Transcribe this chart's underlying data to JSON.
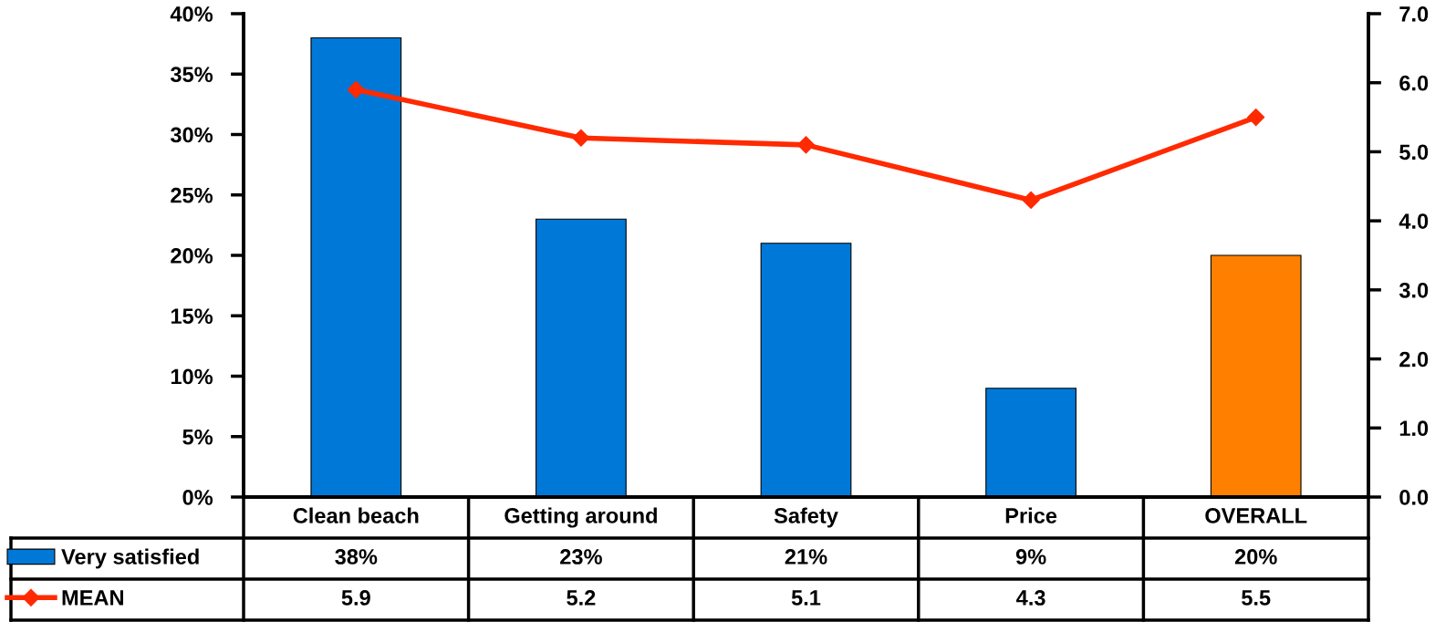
{
  "chart_data": {
    "type": "bar",
    "categories": [
      "Clean beach",
      "Getting around",
      "Safety",
      "Price",
      "OVERALL"
    ],
    "series": [
      {
        "name": "Very satisfied",
        "color": "#0078d7",
        "colors": [
          "#0078d7",
          "#0078d7",
          "#0078d7",
          "#0078d7",
          "#ff8000"
        ],
        "values": [
          38,
          23,
          21,
          9,
          20
        ],
        "value_labels": [
          "38%",
          "23%",
          "21%",
          "9%",
          "20%"
        ]
      },
      {
        "name": "MEAN",
        "type": "line",
        "axis": "y2",
        "color": "#ff2a00",
        "values": [
          5.9,
          5.2,
          5.1,
          4.3,
          5.5
        ],
        "value_labels": [
          "5.9",
          "5.2",
          "5.1",
          "4.3",
          "5.5"
        ]
      }
    ],
    "ylim": [
      0,
      40
    ],
    "yticks": [
      {
        "value": 0,
        "label": "0%"
      },
      {
        "value": 5,
        "label": "5%"
      },
      {
        "value": 10,
        "label": "10%"
      },
      {
        "value": 15,
        "label": "15%"
      },
      {
        "value": 20,
        "label": "20%"
      },
      {
        "value": 25,
        "label": "25%"
      },
      {
        "value": 30,
        "label": "30%"
      },
      {
        "value": 35,
        "label": "35%"
      },
      {
        "value": 40,
        "label": "40%"
      }
    ],
    "y2lim": [
      0,
      7
    ],
    "y2ticks": [
      {
        "value": 0,
        "label": "0.0"
      },
      {
        "value": 1,
        "label": "1.0"
      },
      {
        "value": 2,
        "label": "2.0"
      },
      {
        "value": 3,
        "label": "3.0"
      },
      {
        "value": 4,
        "label": "4.0"
      },
      {
        "value": 5,
        "label": "5.0"
      },
      {
        "value": 6,
        "label": "6.0"
      },
      {
        "value": 7,
        "label": "7.0"
      }
    ],
    "marker": "diamond",
    "line_style": "solid",
    "grid": false,
    "legend": "bottom left"
  }
}
